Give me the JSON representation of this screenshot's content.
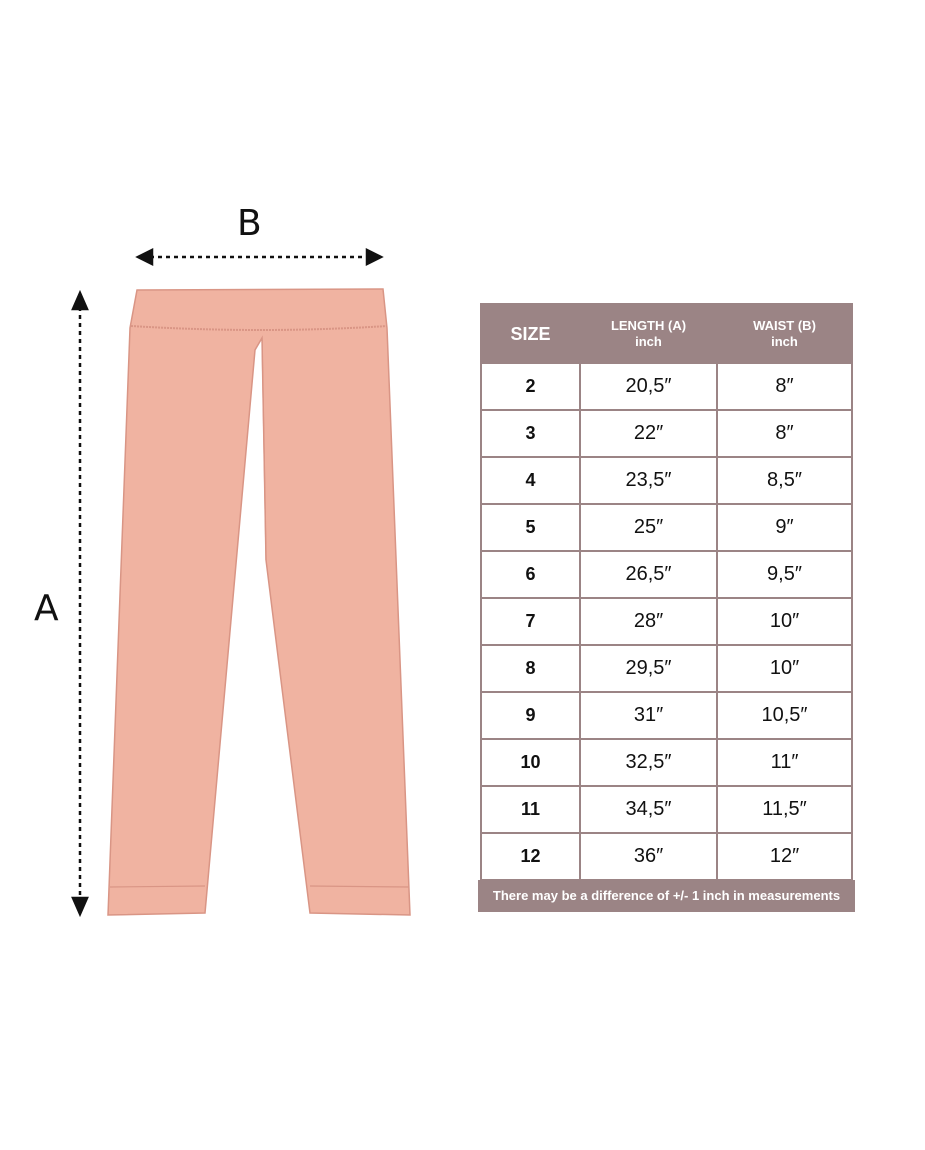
{
  "labels": {
    "a": "A",
    "b": "B"
  },
  "colors": {
    "garment": "#f0b3a1",
    "table_header": "#9b8485"
  },
  "table": {
    "headers": [
      {
        "title": "SIZE",
        "unit": ""
      },
      {
        "title": "LENGTH (A)",
        "unit": "inch"
      },
      {
        "title": "WAIST (B)",
        "unit": "inch"
      }
    ],
    "rows": [
      [
        "2",
        "20,5″",
        "8″"
      ],
      [
        "3",
        "22″",
        "8″"
      ],
      [
        "4",
        "23,5″",
        "8,5″"
      ],
      [
        "5",
        "25″",
        "9″"
      ],
      [
        "6",
        "26,5″",
        "9,5″"
      ],
      [
        "7",
        "28″",
        "10″"
      ],
      [
        "8",
        "29,5″",
        "10″"
      ],
      [
        "9",
        "31″",
        "10,5″"
      ],
      [
        "10",
        "32,5″",
        "11″"
      ],
      [
        "11",
        "34,5″",
        "11,5″"
      ],
      [
        "12",
        "36″",
        "12″"
      ]
    ]
  },
  "note": "There may be a difference of +/- 1 inch in measurements"
}
